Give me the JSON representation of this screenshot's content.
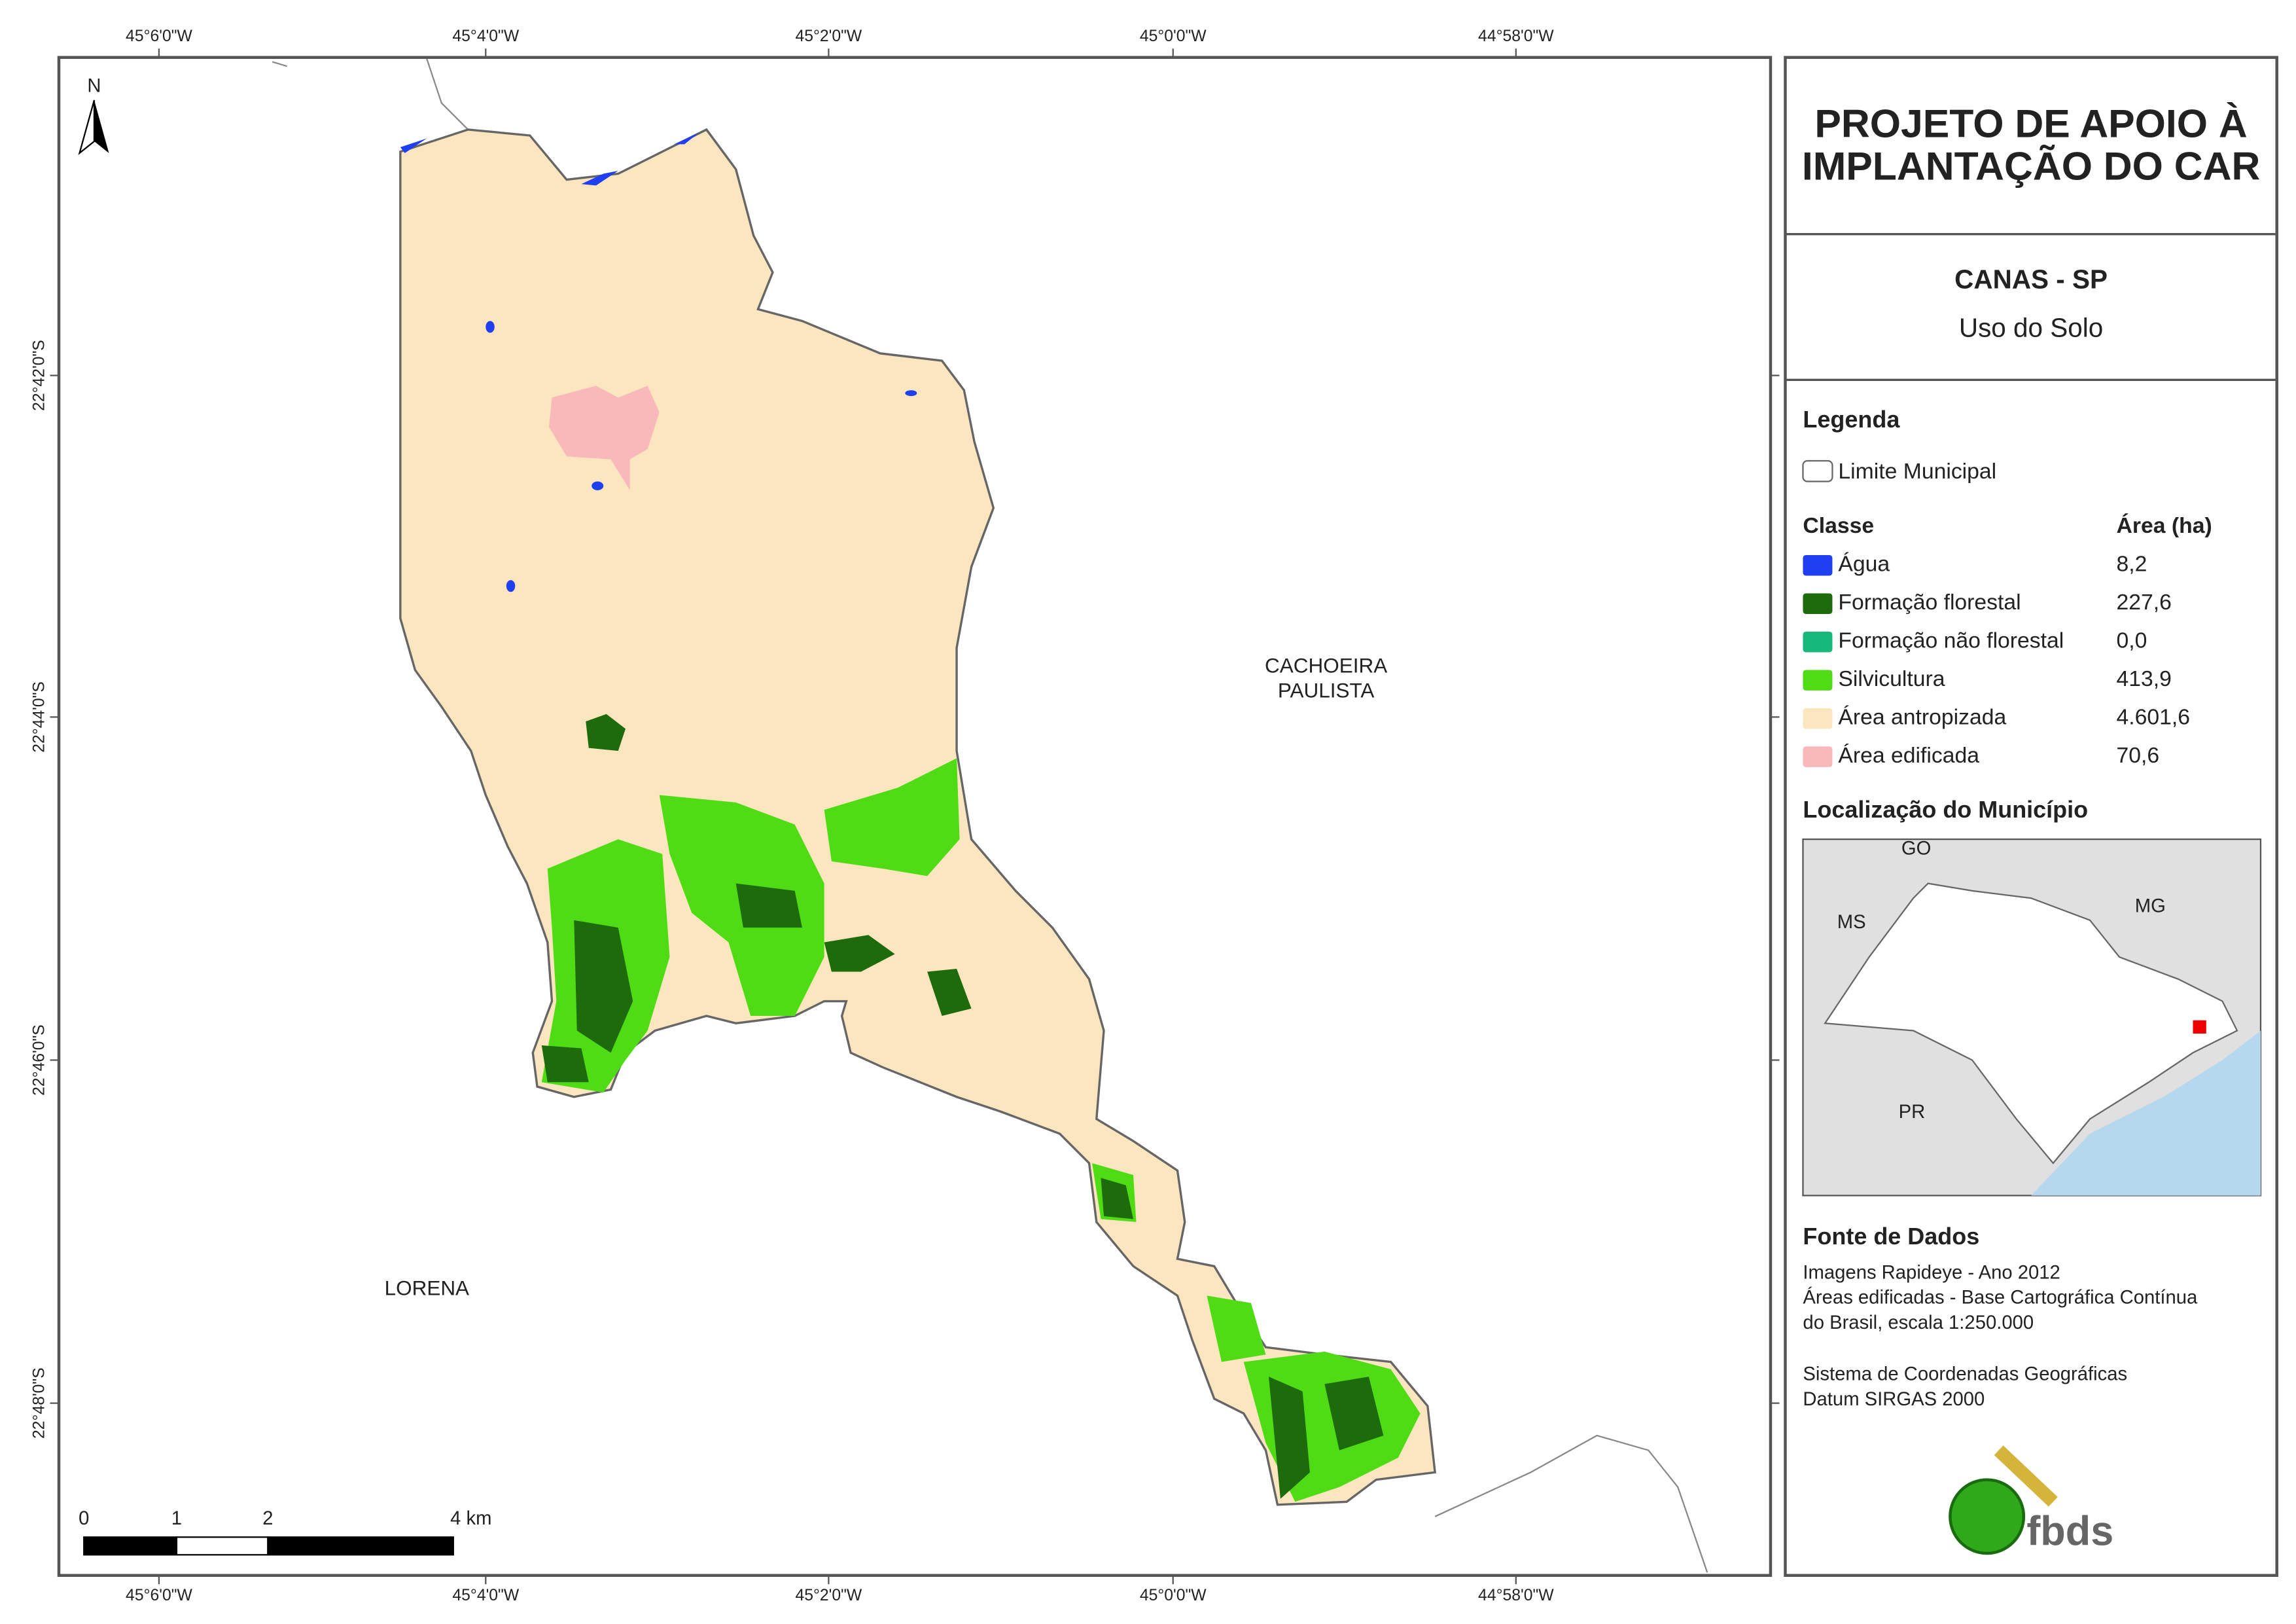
{
  "frame": {
    "lon_ticks": [
      "45°6'0\"W",
      "45°4'0\"W",
      "45°2'0\"W",
      "45°0'0\"W",
      "44°58'0\"W"
    ],
    "lat_ticks": [
      "22°42'0\"S",
      "22°44'0\"S",
      "22°46'0\"S",
      "22°48'0\"S"
    ]
  },
  "map": {
    "north": "N",
    "neighbors": [
      [
        "CACHOEIRA",
        "PAULISTA"
      ],
      [
        "LORENA"
      ]
    ],
    "scale_labels": [
      "0",
      "1",
      "2",
      "4 km"
    ]
  },
  "panel": {
    "title": [
      "PROJETO DE APOIO À",
      "IMPLANTAÇÃO DO CAR"
    ],
    "municipality": "CANAS - SP",
    "subtitle": "Uso do Solo",
    "legend_title": "Legenda",
    "boundary": "Limite Municipal",
    "class_header": "Classe",
    "area_header": "Área (ha)",
    "classes": [
      {
        "name": "Água",
        "color": "#1f3ff0",
        "area": "8,2"
      },
      {
        "name": "Formação florestal",
        "color": "#1e6b0c",
        "area": "227,6"
      },
      {
        "name": "Formação não florestal",
        "color": "#17b87c",
        "area": "0,0"
      },
      {
        "name": "Silvicultura",
        "color": "#4fdc14",
        "area": "413,9"
      },
      {
        "name": "Área antropizada",
        "color": "#fbe6c0",
        "area": "4.601,6"
      },
      {
        "name": "Área edificada",
        "color": "#f9b9bb",
        "area": "70,6"
      }
    ],
    "location_title": "Localização do Município",
    "inset_labels": [
      "GO",
      "MS",
      "MG",
      "PR"
    ],
    "sources_title": "Fonte de Dados",
    "sources": [
      "Imagens Rapideye - Ano 2012",
      "Áreas edificadas - Base Cartográfica Contínua",
      "do Brasil, escala 1:250.000",
      "Sistema de Coordenadas Geográficas",
      "Datum SIRGAS 2000"
    ],
    "logo": "fbds"
  }
}
